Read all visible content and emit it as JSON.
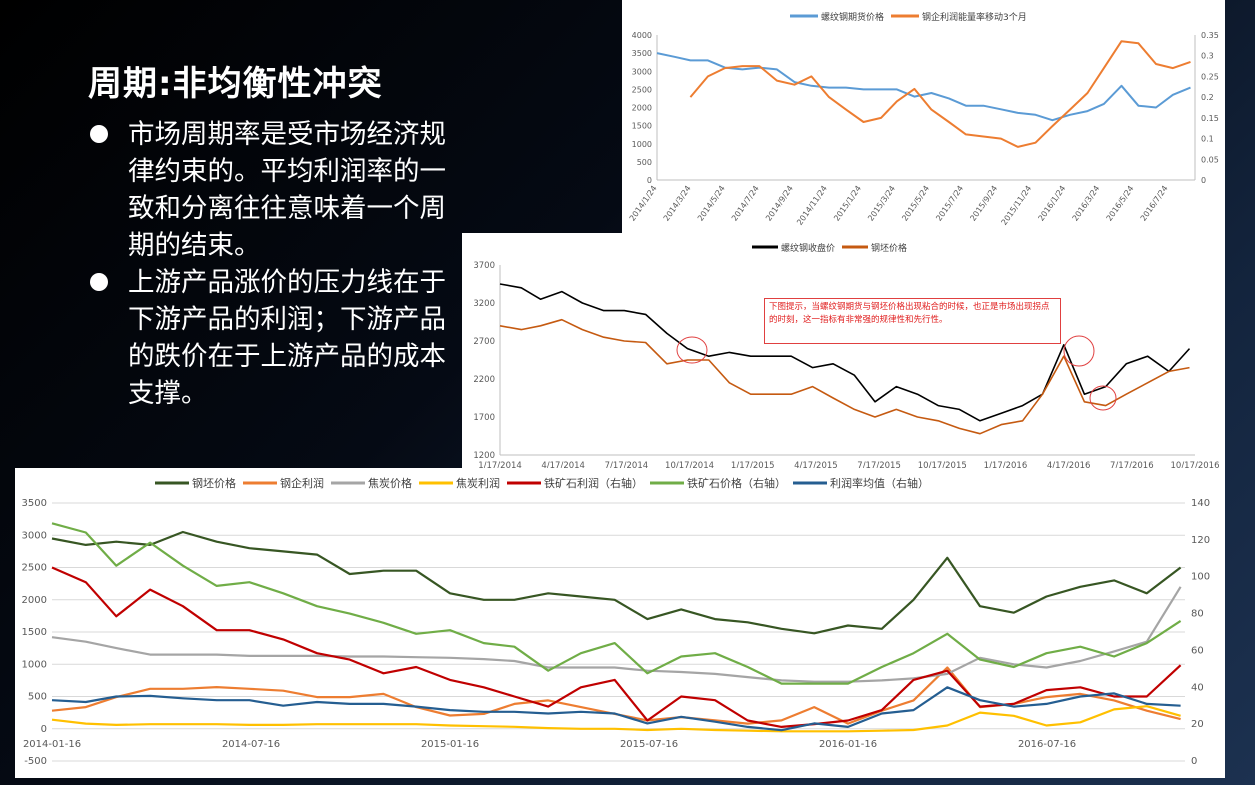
{
  "slide": {
    "title": "周期:非均衡性冲突",
    "bullets": [
      "市场周期率是受市场经济规律约束的。平均利润率的一致和分离往往意味着一个周期的结束。",
      "上游产品涨价的压力线在于下游产品的利润；下游产品的跌价在于上游产品的成本支撑。"
    ]
  },
  "chart_data": [
    {
      "type": "line",
      "title": "",
      "xlim": [
        "2014-01-24",
        "2016-09-01"
      ],
      "ylim": [
        0,
        4000
      ],
      "y2lim": [
        0,
        0.35
      ],
      "yticks": [
        "0",
        "500",
        "1000",
        "1500",
        "2000",
        "2500",
        "3000",
        "3500",
        "4000"
      ],
      "y2ticks": [
        "0",
        "0.05",
        "0.1",
        "0.15",
        "0.2",
        "0.25",
        "0.3",
        "0.35"
      ],
      "xticks": [
        "2014/1/24",
        "2014/3/24",
        "2014/5/24",
        "2014/7/24",
        "2014/9/24",
        "2014/11/24",
        "2015/1/24",
        "2015/3/24",
        "2015/5/24",
        "2015/7/24",
        "2015/9/24",
        "2015/11/24",
        "2016/1/24",
        "2016/3/24",
        "2016/5/24",
        "2016/7/24"
      ],
      "legend": "top",
      "grid": false,
      "x": [
        "2014-01-24",
        "2014-02-24",
        "2014-03-24",
        "2014-04-24",
        "2014-05-24",
        "2014-06-24",
        "2014-07-24",
        "2014-08-24",
        "2014-09-24",
        "2014-10-24",
        "2014-11-24",
        "2014-12-24",
        "2015-01-24",
        "2015-02-24",
        "2015-03-24",
        "2015-04-24",
        "2015-05-24",
        "2015-06-24",
        "2015-07-24",
        "2015-08-24",
        "2015-09-24",
        "2015-10-24",
        "2015-11-24",
        "2015-12-24",
        "2016-01-24",
        "2016-02-24",
        "2016-03-24",
        "2016-04-24",
        "2016-05-24",
        "2016-06-24",
        "2016-07-24",
        "2016-08-24"
      ],
      "series": [
        {
          "name": "螺纹钢期货价格",
          "axis": "left",
          "color": "#5b9bd5",
          "values": [
            3500,
            3400,
            3300,
            3300,
            3100,
            3050,
            3100,
            3050,
            2700,
            2600,
            2550,
            2550,
            2500,
            2500,
            2500,
            2300,
            2400,
            2250,
            2050,
            2050,
            1950,
            1850,
            1800,
            1650,
            1800,
            1900,
            2100,
            2600,
            2050,
            2000,
            2350,
            2550
          ]
        },
        {
          "name": "钢企利润能量率移动3个月",
          "axis": "right",
          "color": "#ed7d31",
          "values": [
            null,
            null,
            0.2,
            0.25,
            0.27,
            0.275,
            0.275,
            0.24,
            0.23,
            0.25,
            0.2,
            0.17,
            0.14,
            0.15,
            0.19,
            0.22,
            0.17,
            0.14,
            0.11,
            0.105,
            0.1,
            0.08,
            0.09,
            0.13,
            0.17,
            0.21,
            0.27,
            0.335,
            0.33,
            0.28,
            0.27,
            0.285
          ]
        }
      ]
    },
    {
      "type": "line",
      "title": "",
      "xlim": [
        "2014-01-17",
        "2016-10-25"
      ],
      "ylim": [
        1200,
        3700
      ],
      "yticks": [
        "1200",
        "1700",
        "2200",
        "2700",
        "3200",
        "3700"
      ],
      "xticks": [
        "1/17/2014",
        "4/17/2014",
        "7/17/2014",
        "10/17/2014",
        "1/17/2015",
        "4/17/2015",
        "7/17/2015",
        "10/17/2015",
        "1/17/2016",
        "4/17/2016",
        "7/17/2016",
        "10/17/2016"
      ],
      "legend": "top",
      "grid": false,
      "annotation": "下图提示，当螺纹钢期货与钢坯价格出现粘合的时候，也正是市场出现拐点的时刻，这一指标有非常强的规律性和先行性。",
      "x": [
        "2014-01-17",
        "2014-02-17",
        "2014-03-17",
        "2014-04-17",
        "2014-05-17",
        "2014-06-17",
        "2014-07-17",
        "2014-08-17",
        "2014-09-17",
        "2014-10-17",
        "2014-11-17",
        "2014-12-17",
        "2015-01-17",
        "2015-02-17",
        "2015-03-17",
        "2015-04-17",
        "2015-05-17",
        "2015-06-17",
        "2015-07-17",
        "2015-08-17",
        "2015-09-17",
        "2015-10-17",
        "2015-11-17",
        "2015-12-17",
        "2016-01-17",
        "2016-02-17",
        "2016-03-17",
        "2016-04-17",
        "2016-05-17",
        "2016-06-17",
        "2016-07-17",
        "2016-08-17",
        "2016-09-17",
        "2016-10-17"
      ],
      "series": [
        {
          "name": "螺纹钢收盘价",
          "color": "#000000",
          "values": [
            3450,
            3400,
            3250,
            3350,
            3200,
            3100,
            3100,
            3050,
            2800,
            2600,
            2500,
            2550,
            2500,
            2500,
            2500,
            2350,
            2400,
            2250,
            1900,
            2100,
            2000,
            1850,
            1800,
            1650,
            1750,
            1850,
            2000,
            2650,
            2000,
            2100,
            2400,
            2500,
            2300,
            2600
          ]
        },
        {
          "name": "钢坯价格",
          "color": "#c55a11",
          "values": [
            2900,
            2850,
            2900,
            2980,
            2850,
            2750,
            2700,
            2680,
            2400,
            2450,
            2450,
            2150,
            2000,
            2000,
            2000,
            2100,
            1950,
            1800,
            1700,
            1800,
            1700,
            1650,
            1550,
            1480,
            1600,
            1650,
            2000,
            2500,
            1900,
            1850,
            2000,
            2150,
            2300,
            2350
          ]
        }
      ]
    },
    {
      "type": "line",
      "title": "",
      "xlim": [
        "2014-01-16",
        "2016-11-20"
      ],
      "ylim": [
        -500,
        3500
      ],
      "y2lim": [
        0,
        140
      ],
      "yticks": [
        "-500",
        "0",
        "500",
        "1000",
        "1500",
        "2000",
        "2500",
        "3000",
        "3500"
      ],
      "y2ticks": [
        "0",
        "20",
        "40",
        "60",
        "80",
        "100",
        "120",
        "140"
      ],
      "xticks": [
        "2014-01-16",
        "2014-07-16",
        "2015-01-16",
        "2015-07-16",
        "2016-01-16",
        "2016-07-16"
      ],
      "legend": "top",
      "grid": true,
      "x": [
        "2014-01-16",
        "2014-02-16",
        "2014-03-16",
        "2014-04-16",
        "2014-05-16",
        "2014-06-16",
        "2014-07-16",
        "2014-08-16",
        "2014-09-16",
        "2014-10-16",
        "2014-11-16",
        "2014-12-16",
        "2015-01-16",
        "2015-02-16",
        "2015-03-16",
        "2015-04-16",
        "2015-05-16",
        "2015-06-16",
        "2015-07-16",
        "2015-08-16",
        "2015-09-16",
        "2015-10-16",
        "2015-11-16",
        "2015-12-16",
        "2016-01-16",
        "2016-02-16",
        "2016-03-16",
        "2016-04-16",
        "2016-05-16",
        "2016-06-16",
        "2016-07-16",
        "2016-08-16",
        "2016-09-16",
        "2016-10-16",
        "2016-11-16"
      ],
      "series": [
        {
          "name": "钢坯价格",
          "axis": "left",
          "color": "#375623",
          "values": [
            2950,
            2850,
            2900,
            2850,
            3050,
            2900,
            2800,
            2750,
            2700,
            2400,
            2450,
            2450,
            2100,
            2000,
            2000,
            2100,
            2050,
            2000,
            1700,
            1850,
            1700,
            1650,
            1550,
            1480,
            1600,
            1550,
            2000,
            2650,
            1900,
            1800,
            2050,
            2200,
            2300,
            2100,
            2500
          ]
        },
        {
          "name": "钢企利润",
          "axis": "left",
          "color": "#ed7d31",
          "values": [
            280,
            335,
            490,
            620,
            620,
            645,
            620,
            590,
            490,
            490,
            540,
            335,
            205,
            230,
            385,
            440,
            335,
            230,
            130,
            180,
            130,
            80,
            130,
            335,
            80,
            280,
            440,
            950,
            335,
            385,
            490,
            540,
            440,
            280,
            150
          ]
        },
        {
          "name": "焦炭价格",
          "axis": "left",
          "color": "#a5a5a5",
          "values": [
            1420,
            1350,
            1250,
            1150,
            1150,
            1150,
            1130,
            1130,
            1130,
            1120,
            1120,
            1110,
            1100,
            1080,
            1050,
            950,
            950,
            950,
            900,
            880,
            850,
            800,
            750,
            730,
            730,
            750,
            780,
            850,
            1100,
            1000,
            950,
            1050,
            1200,
            1350,
            2200
          ]
        },
        {
          "name": "焦炭利润",
          "axis": "left",
          "color": "#ffc000",
          "values": [
            140,
            80,
            60,
            70,
            70,
            70,
            60,
            60,
            70,
            70,
            70,
            70,
            50,
            40,
            30,
            10,
            0,
            0,
            -20,
            0,
            -20,
            -30,
            -40,
            -40,
            -40,
            -30,
            -20,
            50,
            250,
            200,
            50,
            100,
            300,
            350,
            200
          ]
        },
        {
          "name": "铁矿石利润（右轴）",
          "axis": "right",
          "color": "#c00000",
          "values": [
            105,
            97,
            78.5,
            93,
            84,
            71,
            71,
            66,
            58.5,
            55,
            47.6,
            51,
            44,
            40,
            35,
            29.5,
            40,
            44,
            22,
            35,
            33,
            22,
            18.5,
            20,
            22,
            27.6,
            44,
            49,
            29.5,
            31,
            38.5,
            40,
            35,
            35,
            52
          ]
        },
        {
          "name": "铁矿石价格（右轴）",
          "axis": "right",
          "color": "#70ad47",
          "values": [
            129,
            124,
            106,
            118.5,
            106,
            95,
            97,
            91,
            84,
            80,
            75,
            69,
            71,
            64,
            62,
            49,
            58.5,
            64,
            47.6,
            56.7,
            58.5,
            51,
            42,
            42,
            42,
            51,
            58.5,
            69,
            55,
            51,
            58.5,
            62,
            56.7,
            64,
            76
          ]
        },
        {
          "name": "利润率均值（右轴）",
          "axis": "right",
          "color": "#255e91",
          "values": [
            33,
            32,
            35,
            35.3,
            34,
            33,
            33,
            30,
            32,
            31,
            31,
            29.5,
            27.6,
            26.7,
            26.7,
            25.8,
            26.7,
            25.8,
            20.4,
            24,
            21.3,
            18.5,
            16.7,
            20.4,
            18.5,
            25.8,
            27.6,
            40,
            33,
            29.5,
            31,
            35,
            36.7,
            31,
            30
          ]
        }
      ]
    }
  ]
}
